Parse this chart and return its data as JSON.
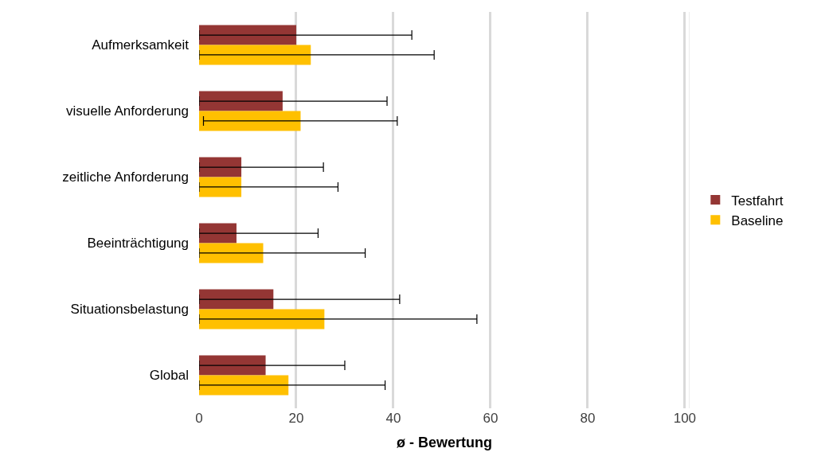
{
  "chart_data": {
    "type": "bar",
    "orientation": "horizontal",
    "xlabel": "ø - Bewertung",
    "categories": [
      "Aufmerksamkeit",
      "visuelle Anforderung",
      "zeitliche Anforderung",
      "Beeinträchtigung",
      "Situationsbelastung",
      "Global"
    ],
    "series": [
      {
        "name": "Testfahrt",
        "color": "#943634",
        "values": [
          20,
          17.2,
          8.7,
          7.7,
          15.3,
          13.7
        ],
        "errors": [
          [
            0,
            43.8
          ],
          [
            0,
            38.7
          ],
          [
            0,
            25.6
          ],
          [
            0,
            24.5
          ],
          [
            0,
            41.3
          ],
          [
            0,
            30.0
          ]
        ]
      },
      {
        "name": "Baseline",
        "color": "#ffc000",
        "values": [
          23,
          20.9,
          8.7,
          13.2,
          25.8,
          18.4
        ],
        "errors": [
          [
            0,
            48.4
          ],
          [
            0.9,
            40.8
          ],
          [
            0,
            28.6
          ],
          [
            0,
            34.2
          ],
          [
            0,
            57.2
          ],
          [
            0,
            38.3
          ]
        ]
      }
    ],
    "xlim": [
      0,
      101
    ],
    "xticks": [
      0,
      20,
      40,
      60,
      80,
      100
    ],
    "grid": "x",
    "legend": "right"
  }
}
